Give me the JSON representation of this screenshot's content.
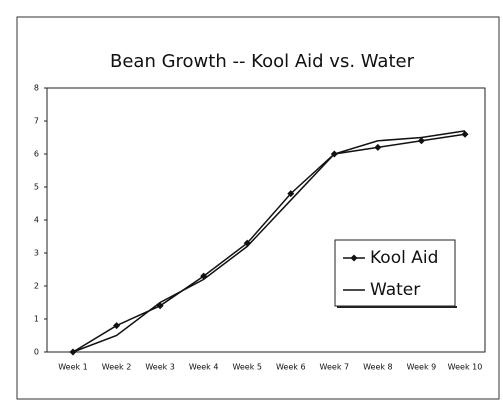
{
  "chart_data": {
    "type": "line",
    "title": "Bean Growth -- Kool Aid vs. Water",
    "categories": [
      "Week 1",
      "Week 2",
      "Week 3",
      "Week 4",
      "Week 5",
      "Week 6",
      "Week 7",
      "Week 8",
      "Week 9",
      "Week 10"
    ],
    "series": [
      {
        "name": "Kool Aid",
        "color": "#111111",
        "marker": "diamond",
        "values": [
          0,
          0.8,
          1.4,
          2.3,
          3.3,
          4.8,
          6.0,
          6.2,
          6.4,
          6.6
        ]
      },
      {
        "name": "Water",
        "color": "#111111",
        "marker": "none",
        "values": [
          0,
          0.5,
          1.5,
          2.2,
          3.2,
          4.6,
          6.0,
          6.4,
          6.5,
          6.7
        ]
      }
    ],
    "ylim": [
      0,
      8
    ],
    "yticks": [
      0,
      1,
      2,
      3,
      4,
      5,
      6,
      7,
      8
    ],
    "grid": false,
    "legend": "right"
  }
}
